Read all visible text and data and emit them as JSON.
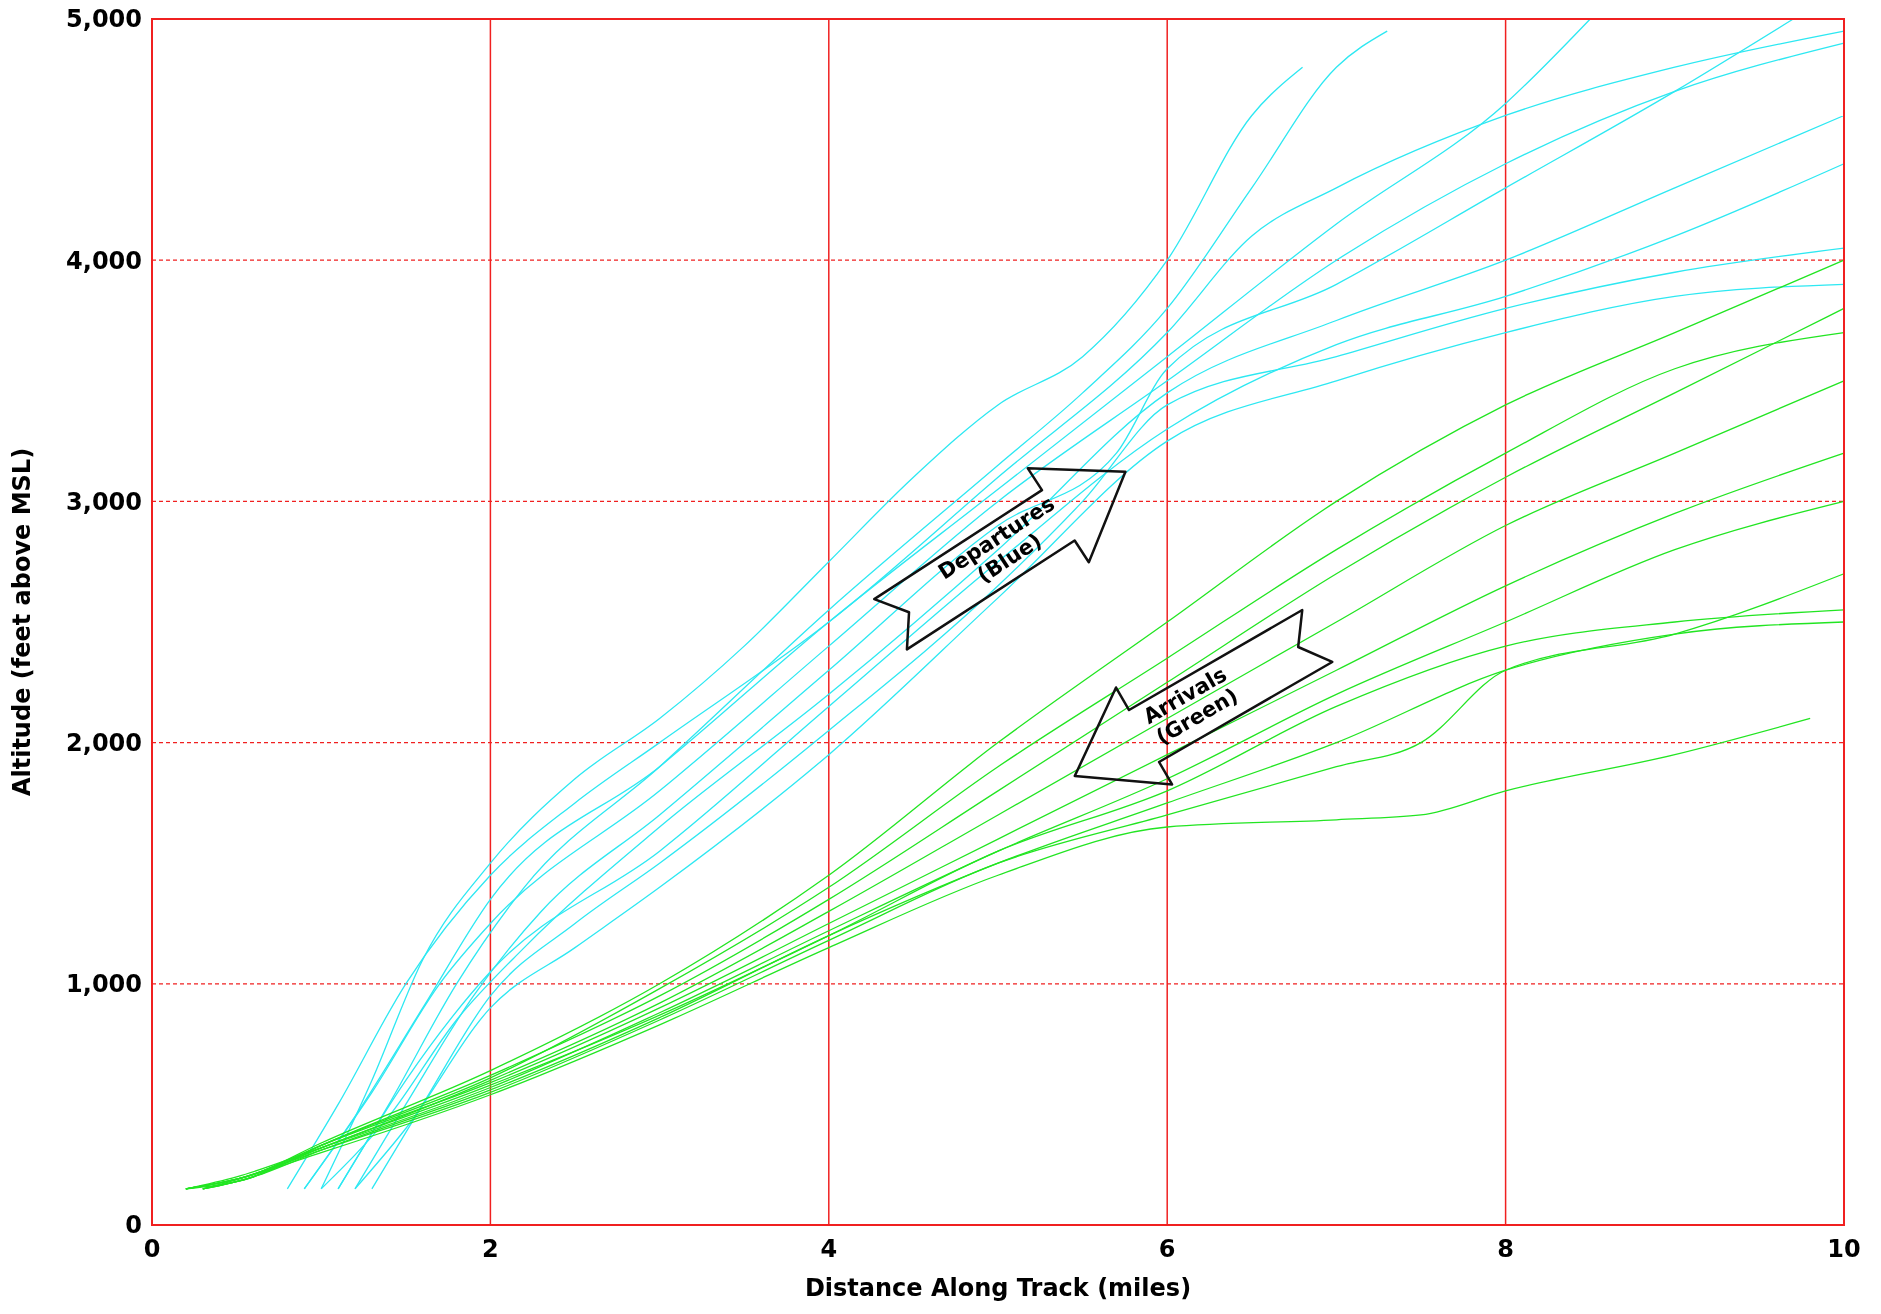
{
  "chart_data": {
    "type": "line",
    "xlabel": "Distance Along Track (miles)",
    "ylabel": "Altitude (feet above MSL)",
    "xlim": [
      0,
      10
    ],
    "xticks": [
      0,
      2,
      4,
      6,
      8,
      10
    ],
    "ylim": [
      0,
      5000
    ],
    "yticks": [
      0,
      {
        "value": 1000,
        "label": "1,000"
      },
      {
        "value": 2000,
        "label": "2,000"
      },
      {
        "value": 3000,
        "label": "3,000"
      },
      {
        "value": 4000,
        "label": "4,000"
      },
      {
        "value": 5000,
        "label": "5,000"
      }
    ],
    "grid": true,
    "marker": "none",
    "line_style": "solid",
    "annotations": [
      "Departures\n(Blue)",
      "Arrivals\n(Green)"
    ],
    "series": [
      {
        "color": "#2de8f2",
        "x": [
          1.0,
          1.3,
          1.6,
          2,
          2.5,
          3,
          3.5,
          4,
          4.5,
          5,
          5.5,
          6,
          6.5,
          6.8
        ],
        "values": [
          150,
          600,
          1100,
          1500,
          1850,
          2100,
          2400,
          2750,
          3100,
          3400,
          3600,
          4000,
          4600,
          4800
        ]
      },
      {
        "color": "#2de8f2",
        "x": [
          1.1,
          1.4,
          1.8,
          2.2,
          3,
          4,
          5,
          5.5,
          6,
          6.5,
          7,
          7.3
        ],
        "values": [
          150,
          500,
          1000,
          1400,
          1900,
          2550,
          3150,
          3450,
          3800,
          4300,
          4800,
          4950
        ]
      },
      {
        "color": "#2de8f2",
        "x": [
          0.9,
          1.3,
          1.7,
          2,
          3,
          4,
          5,
          6,
          7,
          8,
          9,
          10
        ],
        "values": [
          150,
          550,
          1000,
          1250,
          1800,
          2400,
          3000,
          3500,
          4000,
          4400,
          4700,
          4900
        ]
      },
      {
        "color": "#2de8f2",
        "x": [
          1.2,
          1.5,
          1.9,
          2.3,
          3,
          4,
          5,
          5.7,
          6,
          7,
          8,
          9,
          9.7
        ],
        "values": [
          150,
          500,
          950,
          1300,
          1700,
          2300,
          2900,
          3200,
          3550,
          3900,
          4300,
          4700,
          5000
        ]
      },
      {
        "color": "#2de8f2",
        "x": [
          1.0,
          1.4,
          1.8,
          2.2,
          3,
          4,
          5,
          6,
          7,
          8,
          9,
          10
        ],
        "values": [
          150,
          450,
          850,
          1150,
          1650,
          2200,
          2800,
          3450,
          3750,
          4000,
          4300,
          4600
        ]
      },
      {
        "color": "#2de8f2",
        "x": [
          1.3,
          1.6,
          2,
          2.5,
          3,
          4,
          5,
          5.5,
          6,
          7,
          8,
          9,
          10
        ],
        "values": [
          150,
          500,
          950,
          1250,
          1500,
          2050,
          2650,
          3000,
          3400,
          3600,
          3800,
          3950,
          4050
        ]
      },
      {
        "color": "#2de8f2",
        "x": [
          0.8,
          1.1,
          1.5,
          2,
          2.5,
          3,
          4,
          5,
          6,
          6.5,
          7,
          8,
          9,
          10
        ],
        "values": [
          150,
          500,
          1000,
          1450,
          1750,
          2000,
          2500,
          3100,
          3700,
          4100,
          4300,
          4600,
          4800,
          4950
        ]
      },
      {
        "color": "#2de8f2",
        "x": [
          1.1,
          1.5,
          2,
          3,
          4,
          5,
          6,
          7,
          8,
          9,
          10
        ],
        "values": [
          150,
          600,
          1050,
          1550,
          2150,
          2750,
          3300,
          3650,
          3850,
          4100,
          4400
        ]
      },
      {
        "color": "#2de8f2",
        "x": [
          1.2,
          1.5,
          2,
          2.5,
          3,
          4,
          5,
          6,
          7,
          8,
          9,
          10
        ],
        "values": [
          150,
          400,
          900,
          1150,
          1400,
          1950,
          2600,
          3250,
          3500,
          3700,
          3850,
          3900
        ]
      },
      {
        "color": "#2de8f2",
        "x": [
          0.9,
          1.2,
          1.6,
          2,
          3,
          4,
          5,
          6,
          7,
          8,
          8.5
        ],
        "values": [
          150,
          450,
          900,
          1350,
          1900,
          2500,
          3050,
          3600,
          4150,
          4650,
          5000
        ]
      },
      {
        "color": "#22e522",
        "x": [
          0.2,
          0.5,
          1,
          2,
          3,
          4,
          5,
          6,
          7,
          8,
          9,
          10
        ],
        "values": [
          150,
          180,
          320,
          580,
          870,
          1200,
          1550,
          1800,
          2150,
          2400,
          2500,
          2550
        ]
      },
      {
        "color": "#22e522",
        "x": [
          0.3,
          0.6,
          1,
          2,
          3,
          4,
          5,
          6,
          7,
          8,
          9,
          10
        ],
        "values": [
          150,
          200,
          330,
          620,
          950,
          1350,
          1800,
          2250,
          2700,
          3100,
          3450,
          3800
        ]
      },
      {
        "color": "#22e522",
        "x": [
          0.2,
          0.6,
          1,
          2,
          3,
          4,
          5,
          6,
          7,
          8,
          9,
          10
        ],
        "values": [
          150,
          210,
          340,
          640,
          1000,
          1450,
          2000,
          2500,
          3000,
          3400,
          3700,
          4000
        ]
      },
      {
        "color": "#22e522",
        "x": [
          0.2,
          0.5,
          1,
          2,
          3,
          4,
          5,
          6,
          7,
          7.5,
          8,
          9,
          9.8
        ],
        "values": [
          150,
          190,
          300,
          540,
          830,
          1150,
          1450,
          1650,
          1680,
          1700,
          1800,
          1950,
          2100
        ]
      },
      {
        "color": "#22e522",
        "x": [
          0.3,
          0.6,
          1,
          2,
          3,
          4,
          5,
          6,
          7,
          8,
          9,
          10
        ],
        "values": [
          150,
          200,
          310,
          560,
          860,
          1200,
          1500,
          1750,
          2000,
          2300,
          2450,
          2500
        ]
      },
      {
        "color": "#22e522",
        "x": [
          0.2,
          0.5,
          1,
          2,
          3,
          4,
          5,
          6,
          7,
          8,
          9,
          10
        ],
        "values": [
          150,
          190,
          320,
          600,
          920,
          1300,
          1700,
          2100,
          2500,
          2900,
          3200,
          3500
        ]
      },
      {
        "color": "#22e522",
        "x": [
          0.3,
          0.6,
          1,
          2,
          3,
          4,
          5,
          6,
          7,
          8,
          9,
          10
        ],
        "values": [
          150,
          210,
          330,
          590,
          900,
          1250,
          1600,
          1950,
          2300,
          2650,
          2950,
          3200
        ]
      },
      {
        "color": "#22e522",
        "x": [
          0.2,
          0.5,
          1,
          2,
          3,
          4,
          5,
          6,
          7,
          8,
          9,
          10
        ],
        "values": [
          150,
          200,
          320,
          570,
          880,
          1220,
          1550,
          1850,
          2200,
          2500,
          2800,
          3000
        ]
      },
      {
        "color": "#22e522",
        "x": [
          0.2,
          0.5,
          1,
          2,
          3,
          4,
          5,
          6,
          7,
          7.5,
          8,
          9,
          10
        ],
        "values": [
          150,
          190,
          310,
          550,
          850,
          1180,
          1500,
          1700,
          1900,
          2000,
          2300,
          2450,
          2700
        ]
      },
      {
        "color": "#22e522",
        "x": [
          0.3,
          0.6,
          1,
          2,
          3,
          4,
          5,
          6,
          7,
          8,
          9,
          10
        ],
        "values": [
          150,
          200,
          330,
          610,
          980,
          1400,
          1900,
          2350,
          2800,
          3200,
          3550,
          3700
        ]
      }
    ]
  }
}
